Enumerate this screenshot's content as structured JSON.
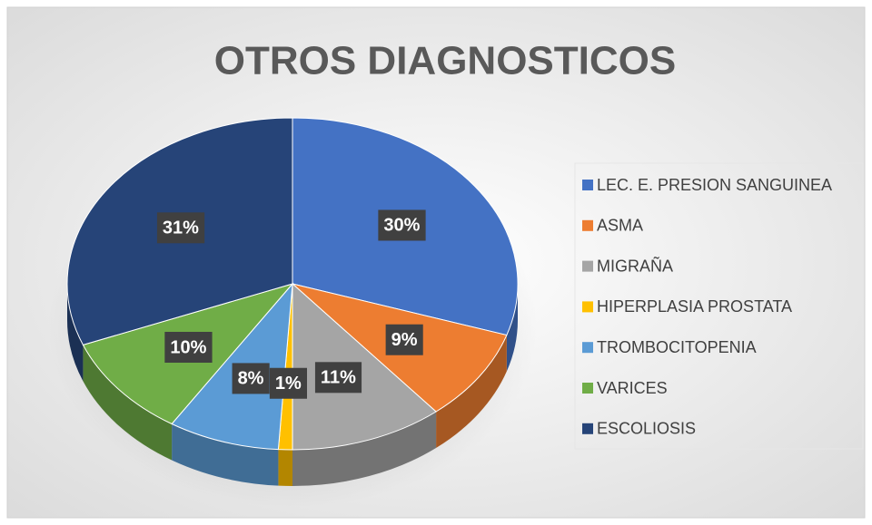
{
  "chart_data": {
    "type": "pie",
    "title": "OTROS DIAGNOSTICOS",
    "categories": [
      "LEC. E. PRESION SANGUINEA",
      "ASMA",
      "MIGRAÑA",
      "HIPERPLASIA PROSTATA",
      "TROMBOCITOPENIA",
      "VARICES",
      "ESCOLIOSIS"
    ],
    "values": [
      30,
      9,
      11,
      1,
      8,
      10,
      31
    ],
    "value_labels": [
      "30%",
      "9%",
      "11%",
      "1%",
      "8%",
      "10%",
      "31%"
    ],
    "colors": [
      "#4472c4",
      "#ed7d31",
      "#a5a5a5",
      "#ffc000",
      "#5b9bd5",
      "#70ad47",
      "#264478"
    ],
    "legend": "right"
  }
}
